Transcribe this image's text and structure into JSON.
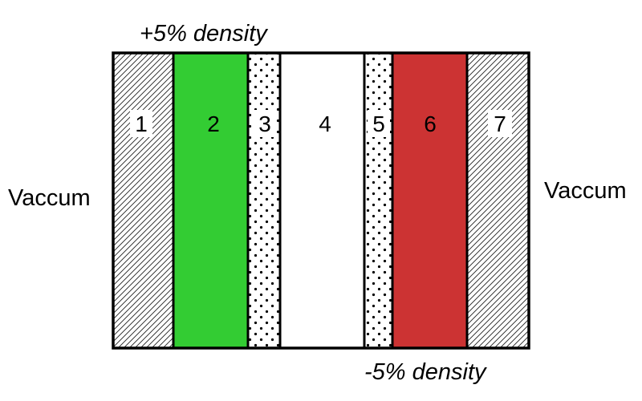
{
  "diagram": {
    "top_annotation": "+5% density",
    "bottom_annotation": "-5% density",
    "left_label": "Vaccum",
    "right_label": "Vaccum",
    "regions": [
      {
        "number": "1",
        "fill": "hatched"
      },
      {
        "number": "2",
        "fill": "solid",
        "color": "#33cc33"
      },
      {
        "number": "3",
        "fill": "dotted"
      },
      {
        "number": "4",
        "fill": "solid",
        "color": "#ffffff"
      },
      {
        "number": "5",
        "fill": "dotted"
      },
      {
        "number": "6",
        "fill": "solid",
        "color": "#cc3333"
      },
      {
        "number": "7",
        "fill": "hatched"
      }
    ]
  }
}
